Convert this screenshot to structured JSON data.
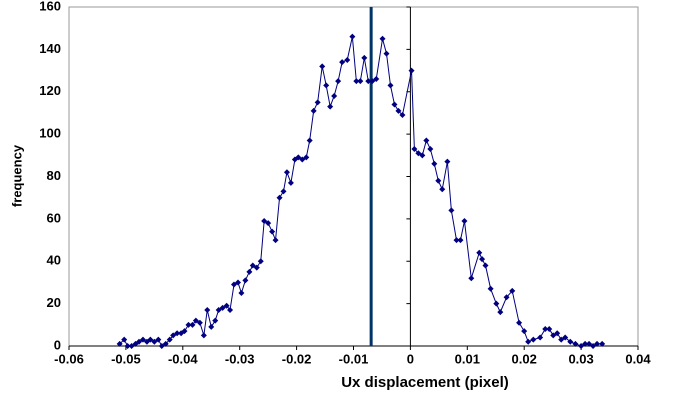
{
  "chart_data": {
    "type": "line",
    "xlabel": "Ux displacement (pixel)",
    "ylabel": "frequency",
    "x": [
      -0.0511,
      -0.0503,
      -0.0497,
      -0.049,
      -0.0483,
      -0.0477,
      -0.047,
      -0.0463,
      -0.0457,
      -0.045,
      -0.0443,
      -0.0437,
      -0.043,
      -0.0423,
      -0.0417,
      -0.041,
      -0.0403,
      -0.0397,
      -0.039,
      -0.0383,
      -0.0377,
      -0.037,
      -0.0363,
      -0.0357,
      -0.035,
      -0.0343,
      -0.0337,
      -0.033,
      -0.0323,
      -0.0317,
      -0.031,
      -0.0303,
      -0.0297,
      -0.029,
      -0.0283,
      -0.0277,
      -0.027,
      -0.0263,
      -0.0257,
      -0.025,
      -0.0243,
      -0.0237,
      -0.023,
      -0.0223,
      -0.0217,
      -0.021,
      -0.0203,
      -0.0197,
      -0.019,
      -0.0183,
      -0.0177,
      -0.017,
      -0.0163,
      -0.0155,
      -0.0148,
      -0.0141,
      -0.0134,
      -0.0127,
      -0.012,
      -0.0111,
      -0.0102,
      -0.0095,
      -0.0088,
      -0.0081,
      -0.0074,
      -0.0067,
      -0.006,
      -0.0049,
      -0.0042,
      -0.0035,
      -0.0028,
      -0.0021,
      -0.0014,
      0.0002,
      0.0007,
      0.0014,
      0.0021,
      0.0028,
      0.0035,
      0.0042,
      0.0049,
      0.0056,
      0.0065,
      0.0072,
      0.0081,
      0.0088,
      0.0095,
      0.0107,
      0.0121,
      0.0126,
      0.0132,
      0.0141,
      0.0151,
      0.0158,
      0.0169,
      0.0179,
      0.0191,
      0.02,
      0.0207,
      0.0216,
      0.0228,
      0.0237,
      0.0244,
      0.0251,
      0.0258,
      0.0265,
      0.0272,
      0.0281,
      0.029,
      0.03,
      0.0307,
      0.0314,
      0.0321,
      0.0328,
      0.0337
    ],
    "series": [
      {
        "color": "#000080",
        "values": [
          1,
          3,
          0,
          0,
          1,
          2,
          3,
          2,
          3,
          2,
          3,
          0,
          1,
          3,
          5,
          6,
          6,
          7,
          10,
          10,
          12,
          11,
          5,
          17,
          9,
          12,
          17,
          18,
          19,
          17,
          29,
          30,
          25,
          31,
          35,
          38,
          37,
          40,
          59,
          58,
          54,
          50,
          70,
          73,
          82,
          77,
          88,
          89,
          88,
          89,
          97,
          111,
          115,
          132,
          123,
          113,
          118,
          125,
          134,
          135,
          146,
          125,
          125,
          136,
          125,
          125,
          126,
          145,
          138,
          123,
          114,
          111,
          109,
          130,
          93,
          91,
          90,
          97,
          93,
          86,
          78,
          74,
          87,
          64,
          50,
          50,
          59,
          32,
          44,
          41,
          38,
          27,
          20,
          16,
          23,
          26,
          11,
          7,
          2,
          3,
          4,
          8,
          8,
          5,
          6,
          3,
          4,
          2,
          1,
          0,
          1,
          1,
          0,
          1,
          1
        ]
      }
    ],
    "vline": -0.0069,
    "vline_color": "#003366",
    "y_axis_at": 0,
    "xlim": [
      -0.06,
      0.04
    ],
    "xticks": [
      -0.06,
      -0.05,
      -0.04,
      -0.03,
      -0.02,
      -0.01,
      0,
      0.01,
      0.02,
      0.03,
      0.04
    ],
    "ylim": [
      0,
      160
    ],
    "yticks": [
      0,
      20,
      40,
      60,
      80,
      100,
      120,
      140,
      160
    ]
  }
}
